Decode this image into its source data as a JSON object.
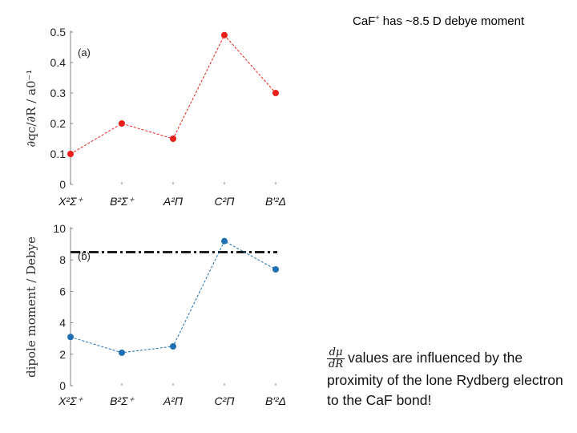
{
  "header_note": {
    "prefix": "CaF",
    "superscript": "+",
    "rest": " has ~8.5 D debye moment"
  },
  "note": {
    "frac_num": "dμ",
    "frac_den": "dR",
    "text": "values are influenced by the proximity of the lone Rydberg electron to the CaF bond!"
  },
  "chart_data": [
    {
      "type": "line",
      "panel_label": "(a)",
      "ylabel": "∂qc/∂R / a0⁻¹",
      "categories": [
        "X²Σ⁺",
        "B²Σ⁺",
        "A²Π",
        "C²Π",
        "B′²Δ"
      ],
      "values": [
        0.1,
        0.2,
        0.15,
        0.49,
        0.3
      ],
      "ylim": [
        0,
        0.5
      ],
      "yticks": [
        "0",
        "0.1",
        "0.2",
        "0.3",
        "0.4",
        "0.5"
      ],
      "color": "#e8201c",
      "line_style": "dashed",
      "grid": false
    },
    {
      "type": "line",
      "panel_label": "(b)",
      "ylabel": "dipole moment  /  Debye",
      "categories": [
        "X²Σ⁺",
        "B²Σ⁺",
        "A²Π",
        "C²Π",
        "B′²Δ"
      ],
      "values": [
        3.1,
        2.1,
        2.5,
        9.2,
        7.4
      ],
      "ylim": [
        0,
        10
      ],
      "yticks": [
        "0",
        "2",
        "4",
        "6",
        "8",
        "10"
      ],
      "reference_line": 8.5,
      "reference_color": "#000000",
      "color": "#1f6fb2",
      "line_style": "dashed",
      "grid": false
    }
  ]
}
